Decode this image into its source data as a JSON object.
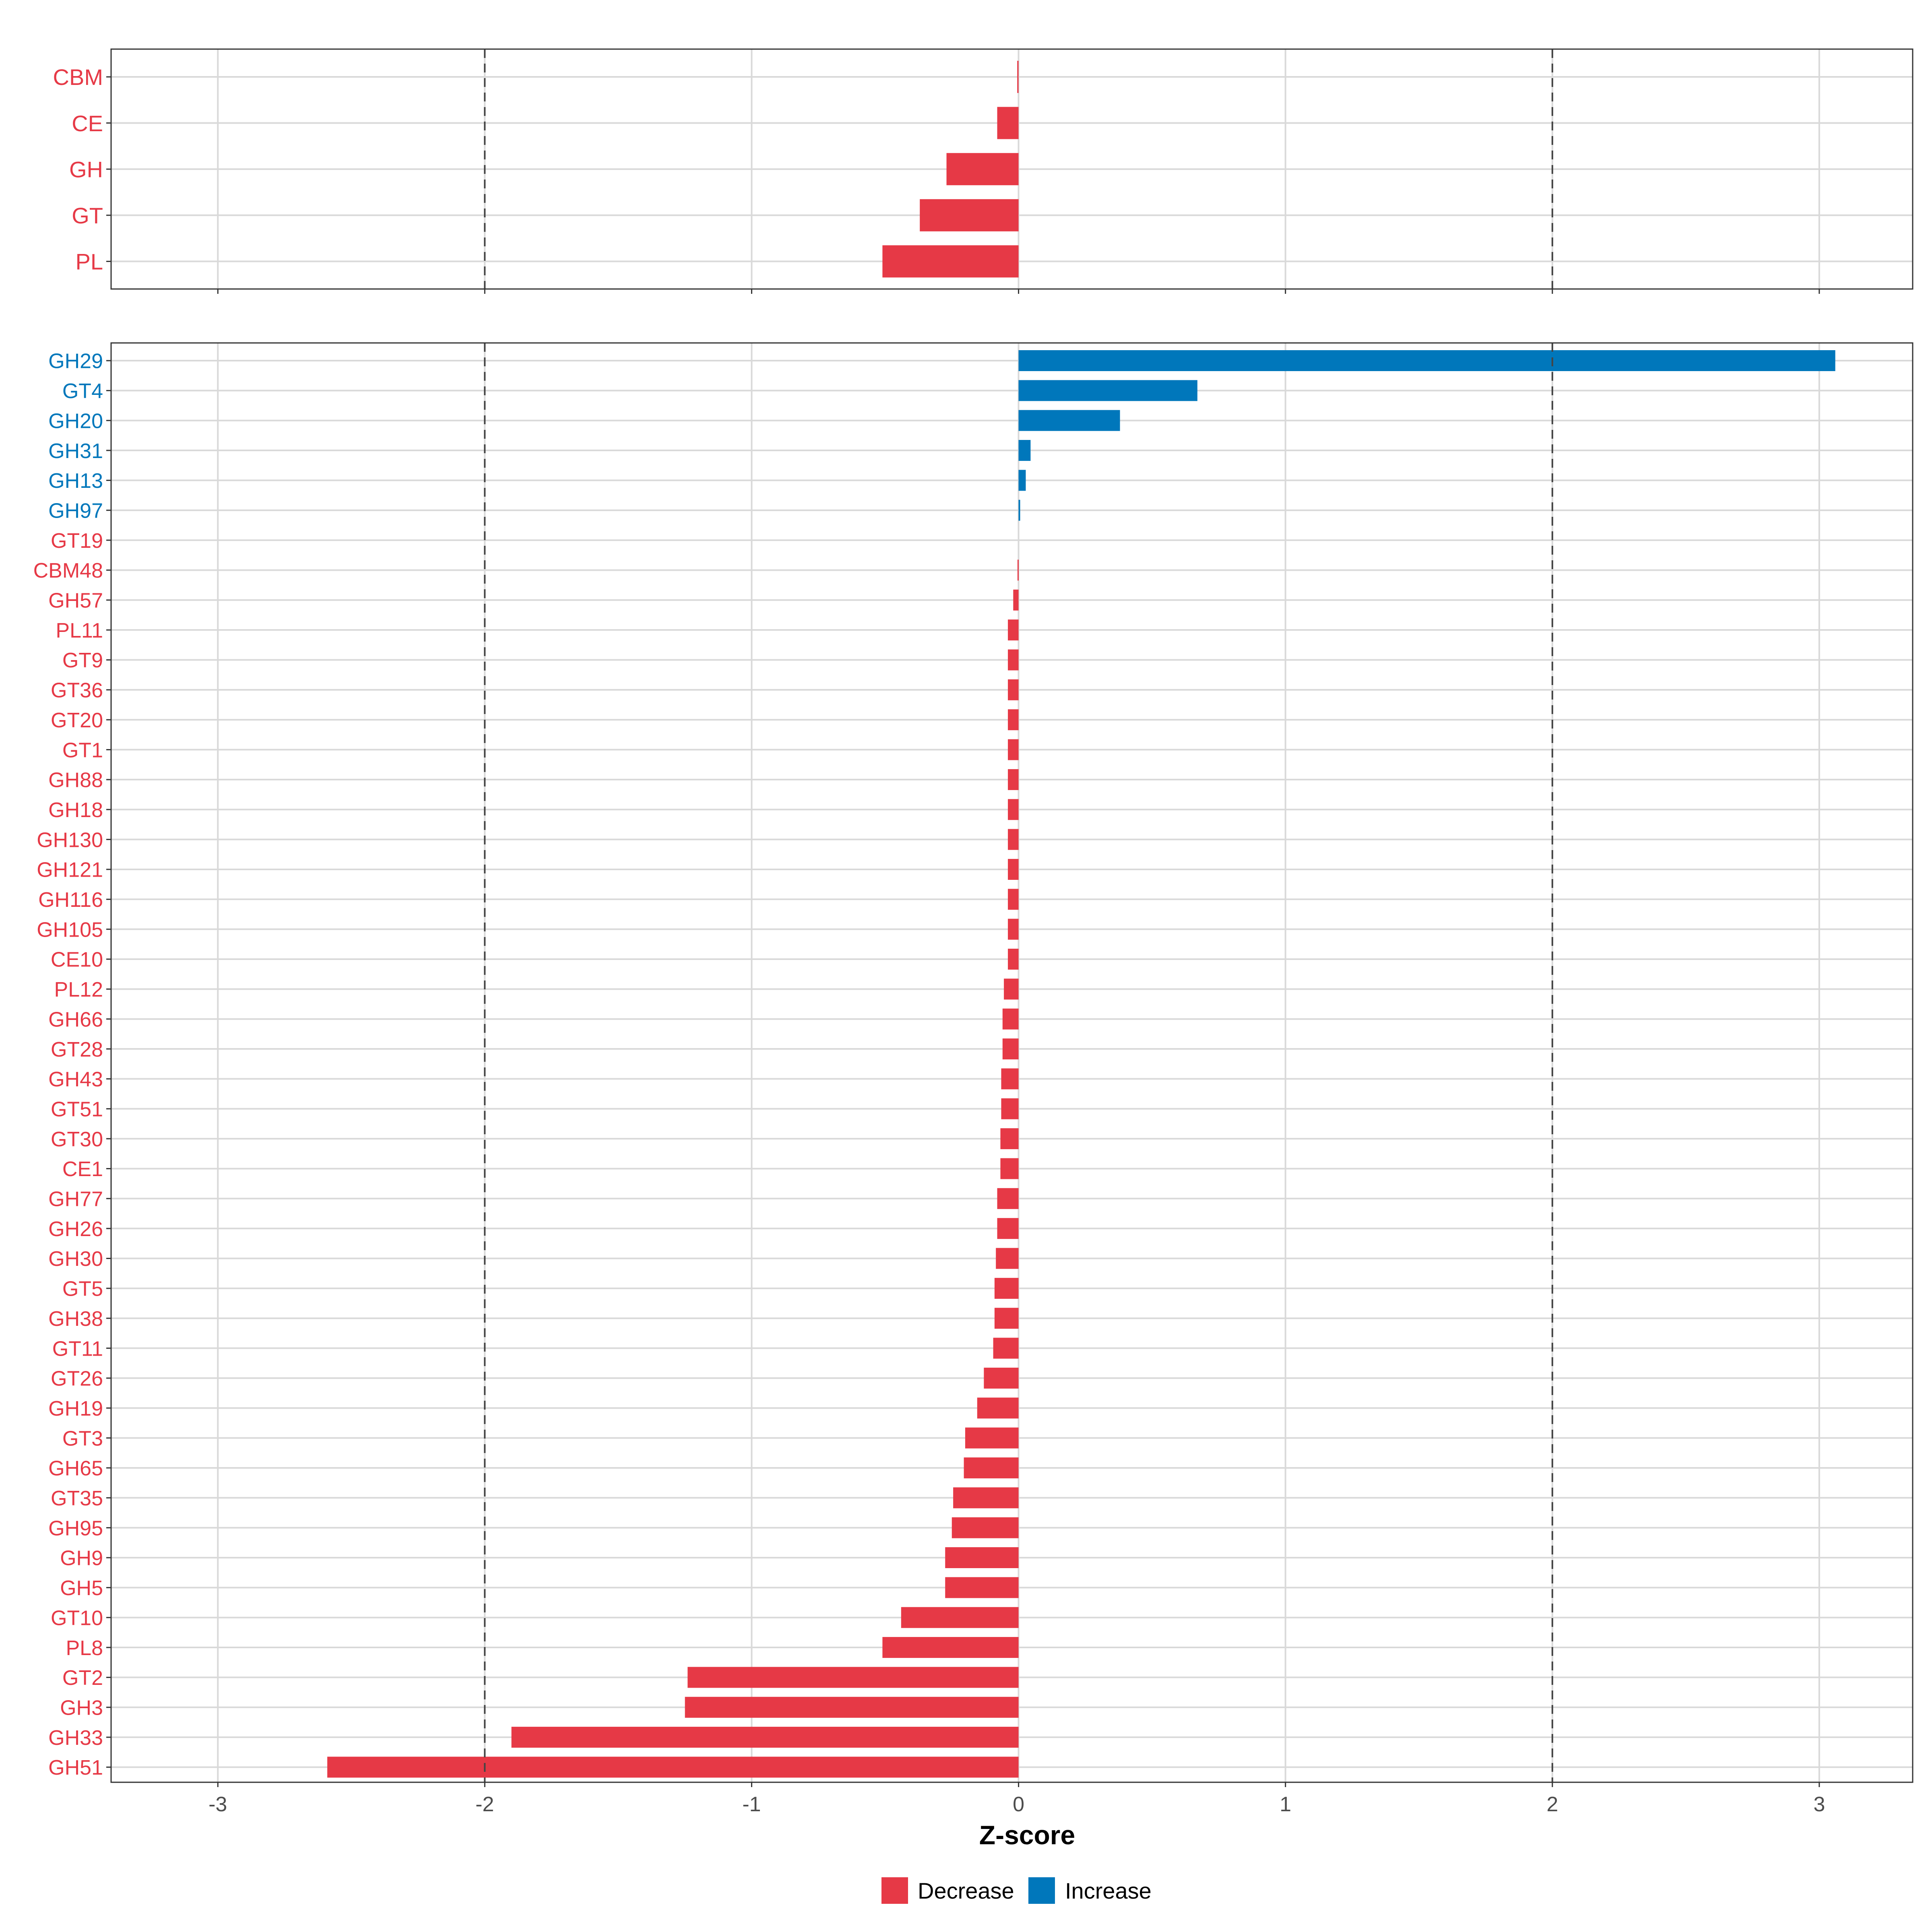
{
  "colors": {
    "decrease": "#E63946",
    "increase": "#0077BB",
    "grid": "#D9D9D9",
    "panel_border": "#333333",
    "reference_line": "#444444",
    "axis_text": "#4D4D4D",
    "title": "#000000"
  },
  "chart_data": [
    {
      "type": "bar",
      "orientation": "horizontal",
      "panel": "top",
      "categories": [
        "CBM",
        "CE",
        "GH",
        "GT",
        "PL"
      ],
      "values": [
        -0.005,
        -0.08,
        -0.27,
        -0.37,
        -0.51
      ],
      "directions": [
        "Decrease",
        "Decrease",
        "Decrease",
        "Decrease",
        "Decrease"
      ],
      "xlim": [
        -3.4,
        3.35
      ],
      "reference_lines": [
        -2,
        2
      ]
    },
    {
      "type": "bar",
      "orientation": "horizontal",
      "panel": "bottom",
      "categories": [
        "GH29",
        "GT4",
        "GH20",
        "GH31",
        "GH13",
        "GH97",
        "GT19",
        "CBM48",
        "GH57",
        "PL11",
        "GT9",
        "GT36",
        "GT20",
        "GT1",
        "GH88",
        "GH18",
        "GH130",
        "GH121",
        "GH116",
        "GH105",
        "CE10",
        "PL12",
        "GH66",
        "GT28",
        "GH43",
        "GT51",
        "GT30",
        "CE1",
        "GH77",
        "GH26",
        "GH30",
        "GT5",
        "GH38",
        "GT11",
        "GT26",
        "GH19",
        "GT3",
        "GH65",
        "GT35",
        "GH95",
        "GH9",
        "GH5",
        "GT10",
        "PL8",
        "GT2",
        "GH3",
        "GH33",
        "GH51"
      ],
      "values": [
        3.06,
        0.67,
        0.38,
        0.045,
        0.027,
        0.006,
        0.0,
        -0.004,
        -0.02,
        -0.04,
        -0.04,
        -0.04,
        -0.04,
        -0.04,
        -0.04,
        -0.04,
        -0.04,
        -0.04,
        -0.04,
        -0.04,
        -0.04,
        -0.055,
        -0.06,
        -0.06,
        -0.065,
        -0.065,
        -0.068,
        -0.068,
        -0.08,
        -0.08,
        -0.085,
        -0.09,
        -0.09,
        -0.095,
        -0.13,
        -0.155,
        -0.2,
        -0.205,
        -0.245,
        -0.25,
        -0.275,
        -0.275,
        -0.44,
        -0.51,
        -1.24,
        -1.25,
        -1.9,
        -2.59
      ],
      "directions": [
        "Increase",
        "Increase",
        "Increase",
        "Increase",
        "Increase",
        "Increase",
        "Decrease",
        "Decrease",
        "Decrease",
        "Decrease",
        "Decrease",
        "Decrease",
        "Decrease",
        "Decrease",
        "Decrease",
        "Decrease",
        "Decrease",
        "Decrease",
        "Decrease",
        "Decrease",
        "Decrease",
        "Decrease",
        "Decrease",
        "Decrease",
        "Decrease",
        "Decrease",
        "Decrease",
        "Decrease",
        "Decrease",
        "Decrease",
        "Decrease",
        "Decrease",
        "Decrease",
        "Decrease",
        "Decrease",
        "Decrease",
        "Decrease",
        "Decrease",
        "Decrease",
        "Decrease",
        "Decrease",
        "Decrease",
        "Decrease",
        "Decrease",
        "Decrease",
        "Decrease",
        "Decrease",
        "Decrease"
      ],
      "xlim": [
        -3.4,
        3.35
      ],
      "xticks": [
        -3,
        -2,
        -1,
        0,
        1,
        2,
        3
      ],
      "xtick_labels": [
        "-3",
        "-2",
        "-1",
        "0",
        "1",
        "2",
        "3"
      ],
      "xlabel": "Z-score",
      "reference_lines": [
        -2,
        2
      ]
    }
  ],
  "legend": {
    "position": "bottom",
    "items": [
      {
        "label": "Decrease",
        "color": "#E63946"
      },
      {
        "label": "Increase",
        "color": "#0077BB"
      }
    ]
  }
}
